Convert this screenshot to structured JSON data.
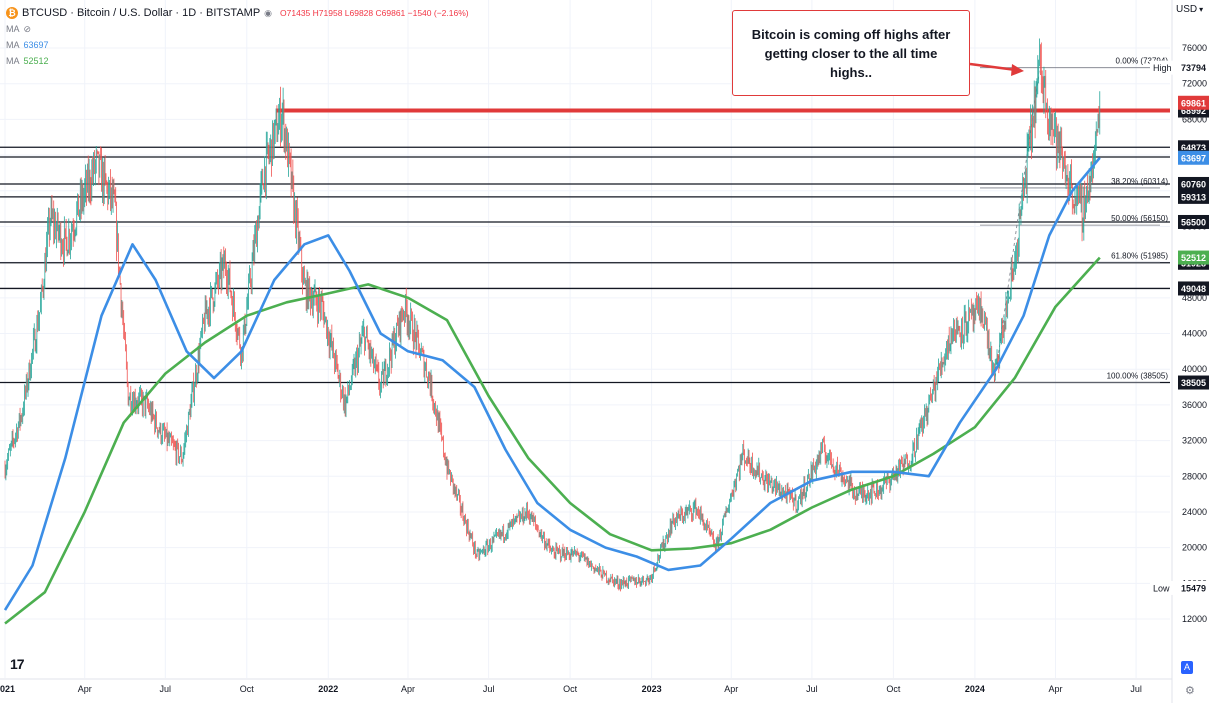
{
  "header": {
    "symbol_title": "BTCUSD · Bitcoin / U.S. Dollar · 1D · BITSTAMP",
    "symbol_badge": "₿",
    "ohlc": "O71435 H71958 L69828 C69861 −1540 (−2.16%)",
    "currency": "USD",
    "ma1_label": "MA",
    "ma2_label": "MA",
    "ma2_value": "63697",
    "ma3_label": "MA",
    "ma3_value": "52512"
  },
  "annotation": {
    "text": "Bitcoin is coming off highs after getting closer to the all time highs.."
  },
  "controls": {
    "auto_label": "A",
    "logo_text": "17",
    "settings_icon": "gear-icon"
  },
  "colors": {
    "ma_fast": "#3c8ee6",
    "ma_slow": "#4caf50",
    "red_level": "#e03a3a",
    "up_candle": "#26a69a",
    "down_candle": "#ef5350",
    "black_level": "#131722"
  },
  "chart_data": {
    "type": "line",
    "y_axis_ticks": [
      12000,
      16000,
      20000,
      24000,
      28000,
      32000,
      36000,
      40000,
      44000,
      48000,
      52000,
      56000,
      60000,
      64000,
      68000,
      72000,
      76000
    ],
    "x_axis_labels": [
      "2021",
      "Apr",
      "Jul",
      "Oct",
      "2022",
      "Apr",
      "Jul",
      "Oct",
      "2023",
      "Apr",
      "Jul",
      "Oct",
      "2024",
      "Apr",
      "Jul"
    ],
    "horizontal_levels": [
      {
        "value": 68992,
        "label": "68992",
        "color": "red"
      },
      {
        "value": 64873,
        "label": "64873"
      },
      {
        "value": 63783,
        "label": "63783"
      },
      {
        "value": 60760,
        "label": "60760"
      },
      {
        "value": 59313,
        "label": "59313"
      },
      {
        "value": 56500,
        "label": "56500"
      },
      {
        "value": 51928,
        "label": "51928"
      },
      {
        "value": 49048,
        "label": "49048"
      },
      {
        "value": 38505,
        "label": "38505"
      }
    ],
    "price_badges": [
      {
        "value": 73794,
        "label": "73794",
        "tag": "High"
      },
      {
        "value": 69861,
        "label": "69861",
        "kind": "last"
      },
      {
        "value": 63697,
        "label": "63697",
        "kind": "ma_fast"
      },
      {
        "value": 52512,
        "label": "52512",
        "kind": "ma_slow"
      },
      {
        "value": 15479,
        "label": "15479",
        "tag": "Low"
      }
    ],
    "fib_levels": [
      {
        "label": "0.00% (73794)",
        "value": 73794
      },
      {
        "label": "38.20% (60314)",
        "value": 60314
      },
      {
        "label": "50.00% (56150)",
        "value": 56150
      },
      {
        "label": "61.80% (51985)",
        "value": 51985
      },
      {
        "label": "100.00% (38505)",
        "value": 38505
      }
    ],
    "price_series": {
      "name": "BTCUSD",
      "x": [
        "2021-01-01",
        "2021-01-20",
        "2021-02-10",
        "2021-02-21",
        "2021-03-10",
        "2021-04-14",
        "2021-05-05",
        "2021-05-20",
        "2021-06-10",
        "2021-06-25",
        "2021-07-20",
        "2021-08-15",
        "2021-09-07",
        "2021-09-25",
        "2021-10-20",
        "2021-11-10",
        "2021-12-05",
        "2021-12-25",
        "2022-01-20",
        "2022-02-10",
        "2022-03-01",
        "2022-03-28",
        "2022-04-25",
        "2022-05-15",
        "2022-06-18",
        "2022-07-10",
        "2022-08-14",
        "2022-09-10",
        "2022-10-10",
        "2022-11-09",
        "2022-11-25",
        "2022-12-30",
        "2023-01-25",
        "2023-02-20",
        "2023-03-15",
        "2023-04-14",
        "2023-05-10",
        "2023-06-15",
        "2023-07-13",
        "2023-08-20",
        "2023-09-15",
        "2023-10-20",
        "2023-11-10",
        "2023-12-05",
        "2024-01-10",
        "2024-01-23",
        "2024-02-15",
        "2024-03-05",
        "2024-03-14",
        "2024-04-01",
        "2024-04-17",
        "2024-05-01",
        "2024-05-15",
        "2024-05-21"
      ],
      "y": [
        29000,
        35000,
        47000,
        57000,
        54000,
        63000,
        58000,
        37000,
        36000,
        33000,
        30000,
        46000,
        52000,
        42000,
        62000,
        68992,
        49000,
        47000,
        36000,
        44000,
        38000,
        47000,
        39000,
        29000,
        19000,
        21000,
        24000,
        19500,
        19200,
        16800,
        16000,
        16500,
        23000,
        24500,
        20000,
        30500,
        27500,
        25000,
        31000,
        26000,
        26500,
        30000,
        36000,
        44000,
        46500,
        39000,
        52000,
        67000,
        73794,
        66000,
        60700,
        57500,
        63500,
        69861
      ]
    },
    "ma_fast": {
      "name": "MA 63697",
      "x": [
        "2021-01-01",
        "2021-02-01",
        "2021-03-10",
        "2021-04-20",
        "2021-05-25",
        "2021-06-20",
        "2021-07-25",
        "2021-08-25",
        "2021-09-25",
        "2021-11-01",
        "2021-12-05",
        "2022-01-01",
        "2022-01-25",
        "2022-03-01",
        "2022-04-01",
        "2022-05-10",
        "2022-06-15",
        "2022-07-20",
        "2022-08-25",
        "2022-10-01",
        "2022-11-10",
        "2022-12-15",
        "2023-01-20",
        "2023-02-25",
        "2023-04-01",
        "2023-05-15",
        "2023-07-01",
        "2023-08-15",
        "2023-10-01",
        "2023-11-10",
        "2023-12-15",
        "2024-01-25",
        "2024-02-25",
        "2024-03-25",
        "2024-04-20",
        "2024-05-21"
      ],
      "y": [
        13000,
        18000,
        30000,
        46000,
        54000,
        50000,
        42000,
        39000,
        42000,
        50000,
        54000,
        55000,
        51000,
        44000,
        42000,
        41000,
        38000,
        31000,
        25000,
        22000,
        20000,
        19000,
        17500,
        18000,
        21000,
        25000,
        27500,
        28500,
        28500,
        28000,
        34000,
        40000,
        46000,
        55000,
        60000,
        63697
      ]
    },
    "ma_slow": {
      "name": "MA 52512",
      "x": [
        "2021-01-01",
        "2021-02-15",
        "2021-04-01",
        "2021-05-15",
        "2021-07-01",
        "2021-08-15",
        "2021-10-01",
        "2021-11-15",
        "2022-01-01",
        "2022-02-15",
        "2022-04-01",
        "2022-05-15",
        "2022-07-01",
        "2022-08-15",
        "2022-10-01",
        "2022-11-15",
        "2023-01-01",
        "2023-02-15",
        "2023-04-01",
        "2023-05-15",
        "2023-07-01",
        "2023-08-15",
        "2023-10-01",
        "2023-11-15",
        "2024-01-01",
        "2024-02-15",
        "2024-04-01",
        "2024-05-21"
      ],
      "y": [
        11500,
        15000,
        24000,
        34000,
        39500,
        43000,
        46000,
        47500,
        48500,
        49500,
        48000,
        45500,
        37000,
        30000,
        25000,
        21500,
        19700,
        19900,
        20500,
        22000,
        24500,
        26500,
        28000,
        30500,
        33500,
        39000,
        47000,
        52512
      ]
    }
  }
}
